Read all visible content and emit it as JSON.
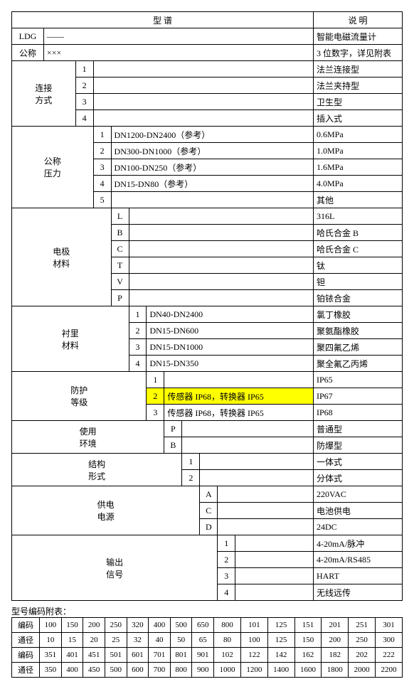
{
  "header": {
    "left": "型    谱",
    "right": "说    明"
  },
  "rows": {
    "r1": {
      "c0": "LDG",
      "c1": "——",
      "desc": "智能电磁流量计"
    },
    "r2": {
      "c0": "公称",
      "c1": "×××",
      "desc": "3 位数字，详见附表"
    },
    "conn": {
      "label": "连接\n方式",
      "1": {
        "code": "1",
        "desc": "法兰连接型"
      },
      "2": {
        "code": "2",
        "desc": "法兰夹持型"
      },
      "3": {
        "code": "3",
        "desc": "卫生型"
      },
      "4": {
        "code": "4",
        "desc": "插入式"
      }
    },
    "press": {
      "label": "公称\n压力",
      "1": {
        "code": "1",
        "val": "DN1200-DN2400（参考）",
        "desc": "0.6MPa"
      },
      "2": {
        "code": "2",
        "val": "DN300-DN1000（参考）",
        "desc": "1.0MPa"
      },
      "3": {
        "code": "3",
        "val": "DN100-DN250（参考）",
        "desc": "1.6MPa"
      },
      "4": {
        "code": "4",
        "val": "DN15-DN80（参考）",
        "desc": "4.0MPa"
      },
      "5": {
        "code": "5",
        "desc": "其他"
      }
    },
    "elec": {
      "label": "电极\n材料",
      "L": {
        "code": "L",
        "desc": "316L"
      },
      "B": {
        "code": "B",
        "desc": "哈氏合金 B"
      },
      "C": {
        "code": "C",
        "desc": "哈氏合金 C"
      },
      "T": {
        "code": "T",
        "desc": "钛"
      },
      "V": {
        "code": "V",
        "desc": "钽"
      },
      "P": {
        "code": "P",
        "desc": "铂铱合金"
      }
    },
    "lining": {
      "label": "衬里\n材料",
      "1": {
        "code": "1",
        "val": "DN40-DN2400",
        "desc": "氯丁橡胶"
      },
      "2": {
        "code": "2",
        "val": "DN15-DN600",
        "desc": "聚氨酯橡胶"
      },
      "3": {
        "code": "3",
        "val": "DN15-DN1000",
        "desc": "聚四氟乙烯"
      },
      "4": {
        "code": "4",
        "val": "DN15-DN350",
        "desc": "聚全氟乙丙烯"
      }
    },
    "prot": {
      "label": "防护\n等级",
      "1": {
        "code": "1",
        "desc": "IP65"
      },
      "2": {
        "code": "2",
        "val": "传感器 IP68，转换器 IP65",
        "desc": "IP67"
      },
      "3": {
        "code": "3",
        "val": "传感器 IP68，转换器 IP65",
        "desc": "IP68"
      }
    },
    "env": {
      "label": "使用\n环境",
      "P": {
        "code": "P",
        "desc": "普通型"
      },
      "B": {
        "code": "B",
        "desc": "防爆型"
      }
    },
    "struct": {
      "label": "结构\n形式",
      "1": {
        "code": "1",
        "desc": "一体式"
      },
      "2": {
        "code": "2",
        "desc": "分体式"
      }
    },
    "power": {
      "label": "供电\n电源",
      "A": {
        "code": "A",
        "desc": "220VAC"
      },
      "C": {
        "code": "C",
        "desc": "电池供电"
      },
      "D": {
        "code": "D",
        "desc": "24DC"
      }
    },
    "output": {
      "label": "输出\n信号",
      "1": {
        "code": "1",
        "desc": "4-20mA/脉冲"
      },
      "2": {
        "code": "2",
        "desc": "4-20mA/RS485"
      },
      "3": {
        "code": "3",
        "desc": "HART"
      },
      "4": {
        "code": "4",
        "desc": "无线远传"
      }
    }
  },
  "appendix": {
    "title": "型号编码附表：",
    "labels": {
      "code": "编码",
      "dia": "通径"
    },
    "row1c": [
      "100",
      "150",
      "200",
      "250",
      "320",
      "400",
      "500",
      "650",
      "800",
      "101",
      "125",
      "151",
      "201",
      "251",
      "301"
    ],
    "row1d": [
      "10",
      "15",
      "20",
      "25",
      "32",
      "40",
      "50",
      "65",
      "80",
      "100",
      "125",
      "150",
      "200",
      "250",
      "300"
    ],
    "row2c": [
      "351",
      "401",
      "451",
      "501",
      "601",
      "701",
      "801",
      "901",
      "102",
      "122",
      "142",
      "162",
      "182",
      "202",
      "222"
    ],
    "row2d": [
      "350",
      "400",
      "450",
      "500",
      "600",
      "700",
      "800",
      "900",
      "1000",
      "1200",
      "1400",
      "1600",
      "1800",
      "2000",
      "2200"
    ]
  }
}
